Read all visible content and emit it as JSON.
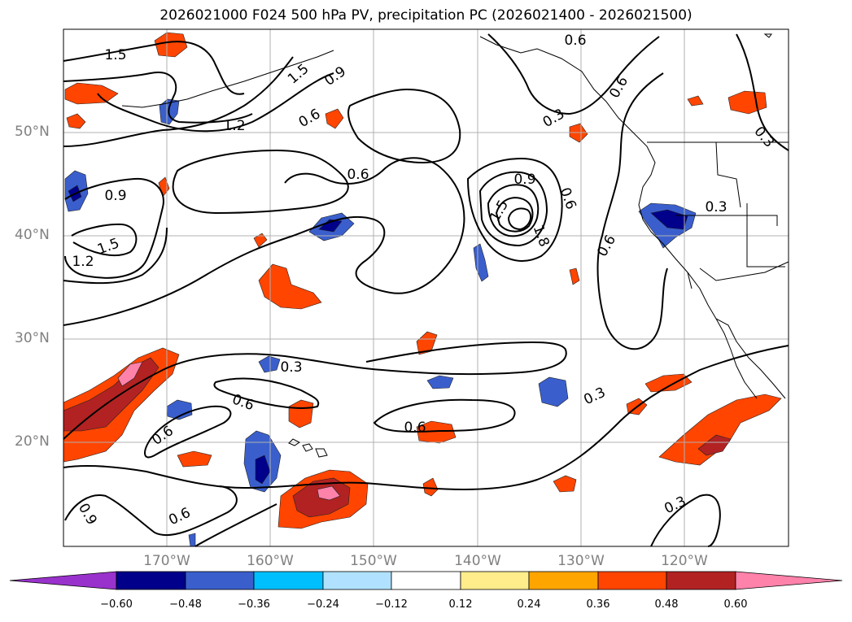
{
  "title": "2026021000 F024 500 hPa PV, precipitation PC (2026021400 - 2026021500)",
  "lat_labels": [
    "50°N",
    "40°N",
    "30°N",
    "20°N"
  ],
  "lon_labels": [
    "170°W",
    "160°W",
    "150°W",
    "140°W",
    "130°W",
    "120°W"
  ],
  "colorbar": {
    "ticks": [
      "−0.60",
      "−0.48",
      "−0.36",
      "−0.24",
      "−0.12",
      "0.12",
      "0.24",
      "0.36",
      "0.48",
      "0.60"
    ],
    "colors": [
      "#9932cc",
      "#00008b",
      "#3a5fcd",
      "#00bfff",
      "#b0e2ff",
      "#ffffff",
      "#ffec8b",
      "#ffa500",
      "#ff4500",
      "#b22222",
      "#ff82ab"
    ]
  },
  "contour_labels": {
    "c1": "1.5",
    "c2": "1.5",
    "c3": "0.9",
    "c4": "1.2",
    "c5": "0.6",
    "c6": "0.6",
    "c7": "0.6",
    "c8": "0.3",
    "c9": "0.6",
    "c10": "0.3",
    "c11": "0.9",
    "c12": "1.5",
    "c13": "1.2",
    "c14": "0.6",
    "c15": "0.9",
    "c16": "0.6",
    "c17": "1.5",
    "c18": "1.8",
    "c19": "0.3",
    "c20": "0.6",
    "c21": "0.3",
    "c22": "0.6",
    "c23": "0.3",
    "c24": "0.6",
    "c25": "0.9",
    "c26": "0.6",
    "c27": "0.3"
  }
}
